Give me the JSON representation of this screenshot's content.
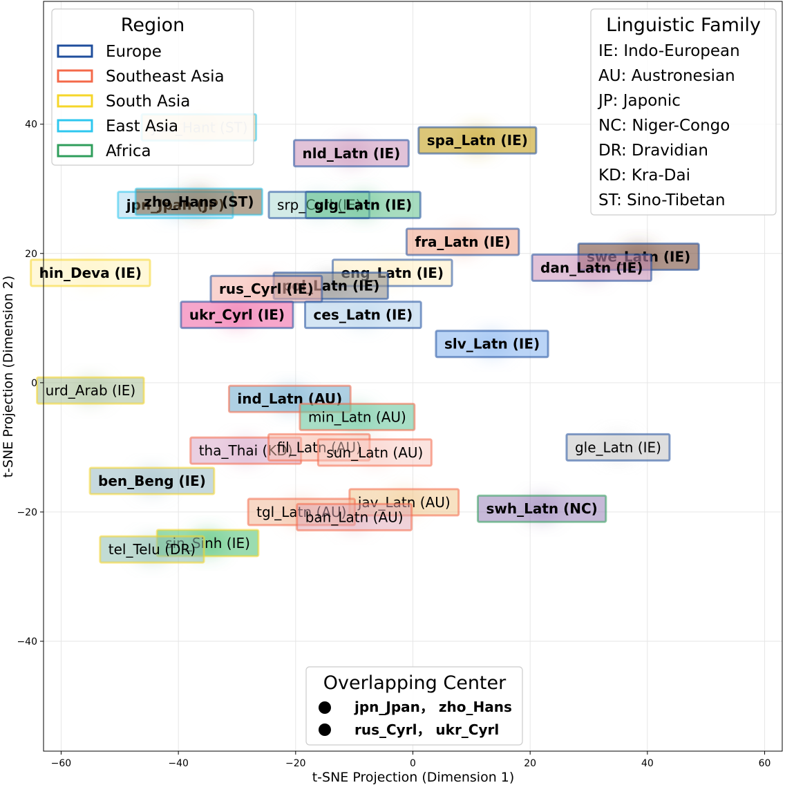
{
  "chart_data": {
    "type": "scatter",
    "xlabel": "t-SNE Projection (Dimension 1)",
    "ylabel": "t-SNE Projection (Dimension 2)",
    "xlim": [
      -63,
      63
    ],
    "ylim": [
      -57,
      59
    ],
    "xticks": [
      -60,
      -40,
      -20,
      0,
      20,
      40,
      60
    ],
    "yticks": [
      -40,
      -20,
      0,
      20,
      40
    ],
    "grid": true,
    "regions": [
      {
        "name": "Europe",
        "color": "#1f4e9c"
      },
      {
        "name": "Southeast Asia",
        "color": "#f4694a"
      },
      {
        "name": "South Asia",
        "color": "#f5d62a"
      },
      {
        "name": "East Asia",
        "color": "#2ec7ef"
      },
      {
        "name": "Africa",
        "color": "#2f9e5b"
      }
    ],
    "region_legend_title": "Region",
    "family_legend_title": "Linguistic Family",
    "families": [
      "IE: Indo-European",
      "AU: Austronesian",
      "JP: Japonic",
      "NC: Niger-Congo",
      "DR: Dravidian",
      "KD: Kra-Dai",
      "ST: Sino-Tibetan"
    ],
    "overlap_title": "Overlapping Center",
    "overlap_entries": [
      "jpn_Jpan， zho_Hans",
      "rus_Cyrl， ukr_Cyrl"
    ],
    "languages": [
      {
        "label": "yue_Hant (ST)",
        "x": -36.5,
        "y": 39.5,
        "region": "East Asia",
        "fill": "#e8c070",
        "fill_opacity": 0.45,
        "bold": false,
        "text_color": "#aaaaaa"
      },
      {
        "label": "spa_Latn (IE)",
        "x": 11,
        "y": 37.5,
        "region": "Europe",
        "fill": "#c9a830",
        "fill_opacity": 0.65,
        "bold": true,
        "text_color": "#000000"
      },
      {
        "label": "nld_Latn (IE)",
        "x": -10.5,
        "y": 35.5,
        "region": "Europe",
        "fill": "#c890b8",
        "fill_opacity": 0.55,
        "bold": true,
        "text_color": "#000000"
      },
      {
        "label": "jpn_Jpan (JP)",
        "x": -40.5,
        "y": 27.5,
        "region": "East Asia",
        "fill": "#a8d8f0",
        "fill_opacity": 0.5,
        "bold": true,
        "text_color": "#000000"
      },
      {
        "label": "srp_Cyrl (IE)",
        "x": -16,
        "y": 27.5,
        "region": "Europe",
        "fill": "#a8d8d0",
        "fill_opacity": 0.5,
        "bold": false,
        "text_color": "#000000"
      },
      {
        "label": "glg_Latn (IE)",
        "x": -8.5,
        "y": 27.5,
        "region": "Europe",
        "fill": "#5fbf8a",
        "fill_opacity": 0.55,
        "bold": true,
        "text_color": "#000000"
      },
      {
        "label": "zho_Hans (ST)",
        "x": -36.5,
        "y": 28,
        "region": "East Asia",
        "fill": "#7a6040",
        "fill_opacity": 0.55,
        "bold": true,
        "text_color": "#000000"
      },
      {
        "label": "fra_Latn (IE)",
        "x": 8.5,
        "y": 21.8,
        "region": "Europe",
        "fill": "#f0a890",
        "fill_opacity": 0.6,
        "bold": true,
        "text_color": "#000000"
      },
      {
        "label": "swe_Latn (IE)",
        "x": 38.5,
        "y": 19.5,
        "region": "Europe",
        "fill": "#7a5040",
        "fill_opacity": 0.6,
        "bold": true,
        "text_color": "#000000"
      },
      {
        "label": "dan_Latn (IE)",
        "x": 30.5,
        "y": 17.8,
        "region": "Europe",
        "fill": "#c890b8",
        "fill_opacity": 0.55,
        "bold": true,
        "text_color": "#000000"
      },
      {
        "label": "hin_Deva (IE)",
        "x": -55,
        "y": 17,
        "region": "South Asia",
        "fill": "#fff4c0",
        "fill_opacity": 0.6,
        "bold": true,
        "text_color": "#000000"
      },
      {
        "label": "eng_Latn (IE)",
        "x": -3.5,
        "y": 17,
        "region": "Europe",
        "fill": "#fff0c8",
        "fill_opacity": 0.6,
        "bold": true,
        "text_color": "#000000"
      },
      {
        "label": "pol_Latn (IE)",
        "x": -14,
        "y": 15,
        "region": "Europe",
        "fill": "#909090",
        "fill_opacity": 0.6,
        "bold": true,
        "text_color": "#000000"
      },
      {
        "label": "rus_Cyrl (IE)",
        "x": -25,
        "y": 14.5,
        "region": "Europe",
        "fill": "#f4b0a8",
        "fill_opacity": 0.55,
        "bold": true,
        "text_color": "#000000"
      },
      {
        "label": "ukr_Cyrl (IE)",
        "x": -30,
        "y": 10.5,
        "region": "Europe",
        "fill": "#f06aa8",
        "fill_opacity": 0.6,
        "bold": true,
        "text_color": "#000000"
      },
      {
        "label": "ces_Latn (IE)",
        "x": -8.5,
        "y": 10.5,
        "region": "Europe",
        "fill": "#b8d4ec",
        "fill_opacity": 0.6,
        "bold": true,
        "text_color": "#000000"
      },
      {
        "label": "slv_Latn (IE)",
        "x": 13.5,
        "y": 6,
        "region": "Europe",
        "fill": "#8cb8f0",
        "fill_opacity": 0.6,
        "bold": true,
        "text_color": "#000000"
      },
      {
        "label": "urd_Arab (IE)",
        "x": -55,
        "y": -1.2,
        "region": "South Asia",
        "fill": "#a8c098",
        "fill_opacity": 0.55,
        "bold": false,
        "text_color": "#000000"
      },
      {
        "label": "ind_Latn (AU)",
        "x": -21,
        "y": -2.5,
        "region": "Southeast Asia",
        "fill": "#78b0d0",
        "fill_opacity": 0.6,
        "bold": true,
        "text_color": "#000000"
      },
      {
        "label": "min_Latn (AU)",
        "x": -9.5,
        "y": -5.3,
        "region": "Southeast Asia",
        "fill": "#6ec8a0",
        "fill_opacity": 0.6,
        "bold": false,
        "text_color": "#000000"
      },
      {
        "label": "tha_Thai (KD)",
        "x": -28.5,
        "y": -10.5,
        "region": "Southeast Asia",
        "fill": "#d8a8c8",
        "fill_opacity": 0.55,
        "bold": false,
        "text_color": "#000000"
      },
      {
        "label": "fil_Latn (AU)",
        "x": -16,
        "y": -10,
        "region": "Southeast Asia",
        "fill": "#f8c0b0",
        "fill_opacity": 0.5,
        "bold": false,
        "text_color": "#000000"
      },
      {
        "label": "sun_Latn (AU)",
        "x": -6.5,
        "y": -10.8,
        "region": "Southeast Asia",
        "fill": "#f8c8c0",
        "fill_opacity": 0.5,
        "bold": false,
        "text_color": "#000000"
      },
      {
        "label": "gle_Latn (IE)",
        "x": 35,
        "y": -10,
        "region": "Europe",
        "fill": "#d0d0d0",
        "fill_opacity": 0.7,
        "bold": false,
        "text_color": "#000000"
      },
      {
        "label": "ben_Beng (IE)",
        "x": -44.5,
        "y": -15.2,
        "region": "South Asia",
        "fill": "#a0c0c8",
        "fill_opacity": 0.6,
        "bold": true,
        "text_color": "#000000"
      },
      {
        "label": "jav_Latn (AU)",
        "x": -1.5,
        "y": -18.5,
        "region": "Southeast Asia",
        "fill": "#f0c890",
        "fill_opacity": 0.55,
        "bold": false,
        "text_color": "#000000"
      },
      {
        "label": "swh_Latn (NC)",
        "x": 22,
        "y": -19.5,
        "region": "Africa",
        "fill": "#9880b8",
        "fill_opacity": 0.55,
        "bold": true,
        "text_color": "#000000"
      },
      {
        "label": "tgl_Latn (AU)",
        "x": -19,
        "y": -20,
        "region": "Southeast Asia",
        "fill": "#f0b898",
        "fill_opacity": 0.55,
        "bold": false,
        "text_color": "#000000"
      },
      {
        "label": "ban_Latn (AU)",
        "x": -10,
        "y": -20.8,
        "region": "Southeast Asia",
        "fill": "#e0a8b8",
        "fill_opacity": 0.5,
        "bold": false,
        "text_color": "#000000"
      },
      {
        "label": "sin_Sinh (IE)",
        "x": -35,
        "y": -24.8,
        "region": "South Asia",
        "fill": "#48c070",
        "fill_opacity": 0.55,
        "bold": false,
        "text_color": "#000000"
      },
      {
        "label": "tel_Telu (DR)",
        "x": -44.5,
        "y": -25.8,
        "region": "South Asia",
        "fill": "#90c0b0",
        "fill_opacity": 0.55,
        "bold": false,
        "text_color": "#000000"
      }
    ]
  }
}
